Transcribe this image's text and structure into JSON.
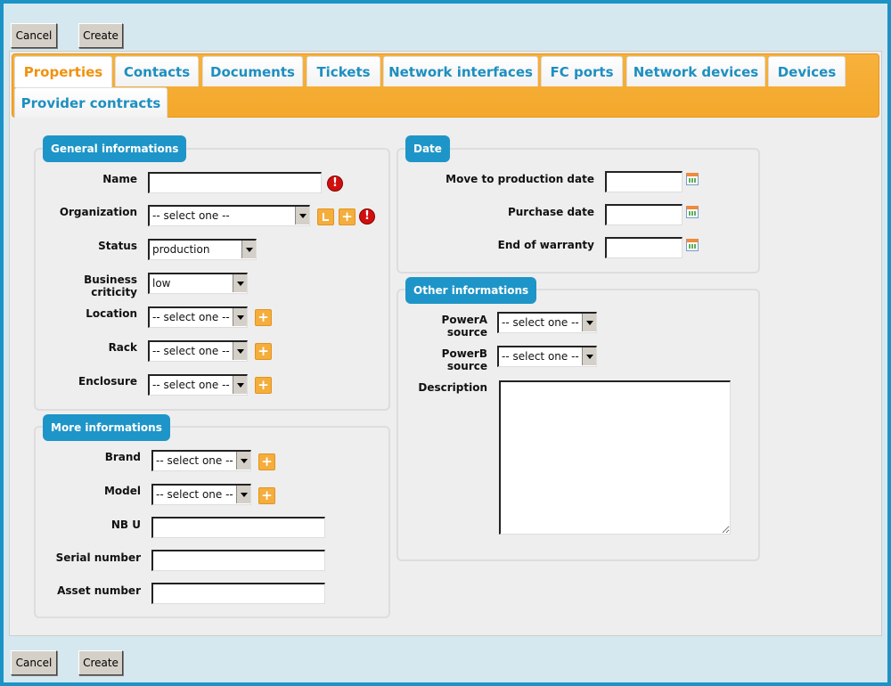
{
  "actions": {
    "cancel": "Cancel",
    "create": "Create"
  },
  "tabs": [
    "Properties",
    "Contacts",
    "Documents",
    "Tickets",
    "Network interfaces",
    "FC ports",
    "Network devices",
    "Devices",
    "Provider contracts"
  ],
  "active_tab": "Properties",
  "general": {
    "legend": "General informations",
    "name": "Name",
    "organization": "Organization",
    "organization_value": "-- select one --",
    "status": "Status",
    "status_value": "production",
    "criticity": "Business criticity",
    "criticity_value": "low",
    "location": "Location",
    "location_value": "-- select one --",
    "rack": "Rack",
    "rack_value": "-- select one --",
    "enclosure": "Enclosure",
    "enclosure_value": "-- select one --"
  },
  "more": {
    "legend": "More informations",
    "brand": "Brand",
    "brand_value": "-- select one --",
    "model": "Model",
    "model_value": "-- select one --",
    "nbu": "NB U",
    "serial": "Serial number",
    "asset": "Asset number"
  },
  "date": {
    "legend": "Date",
    "move": "Move to production date",
    "purchase": "Purchase date",
    "warranty": "End of warranty"
  },
  "other": {
    "legend": "Other informations",
    "powera": "PowerA source",
    "powera_value": "-- select one --",
    "powerb": "PowerB source",
    "powerb_value": "-- select one --",
    "description": "Description"
  },
  "colors": {
    "accent": "#1e95c8",
    "tabbar": "#f5ae37",
    "active_tab_text": "#f0920f",
    "error": "#d10f0f"
  }
}
